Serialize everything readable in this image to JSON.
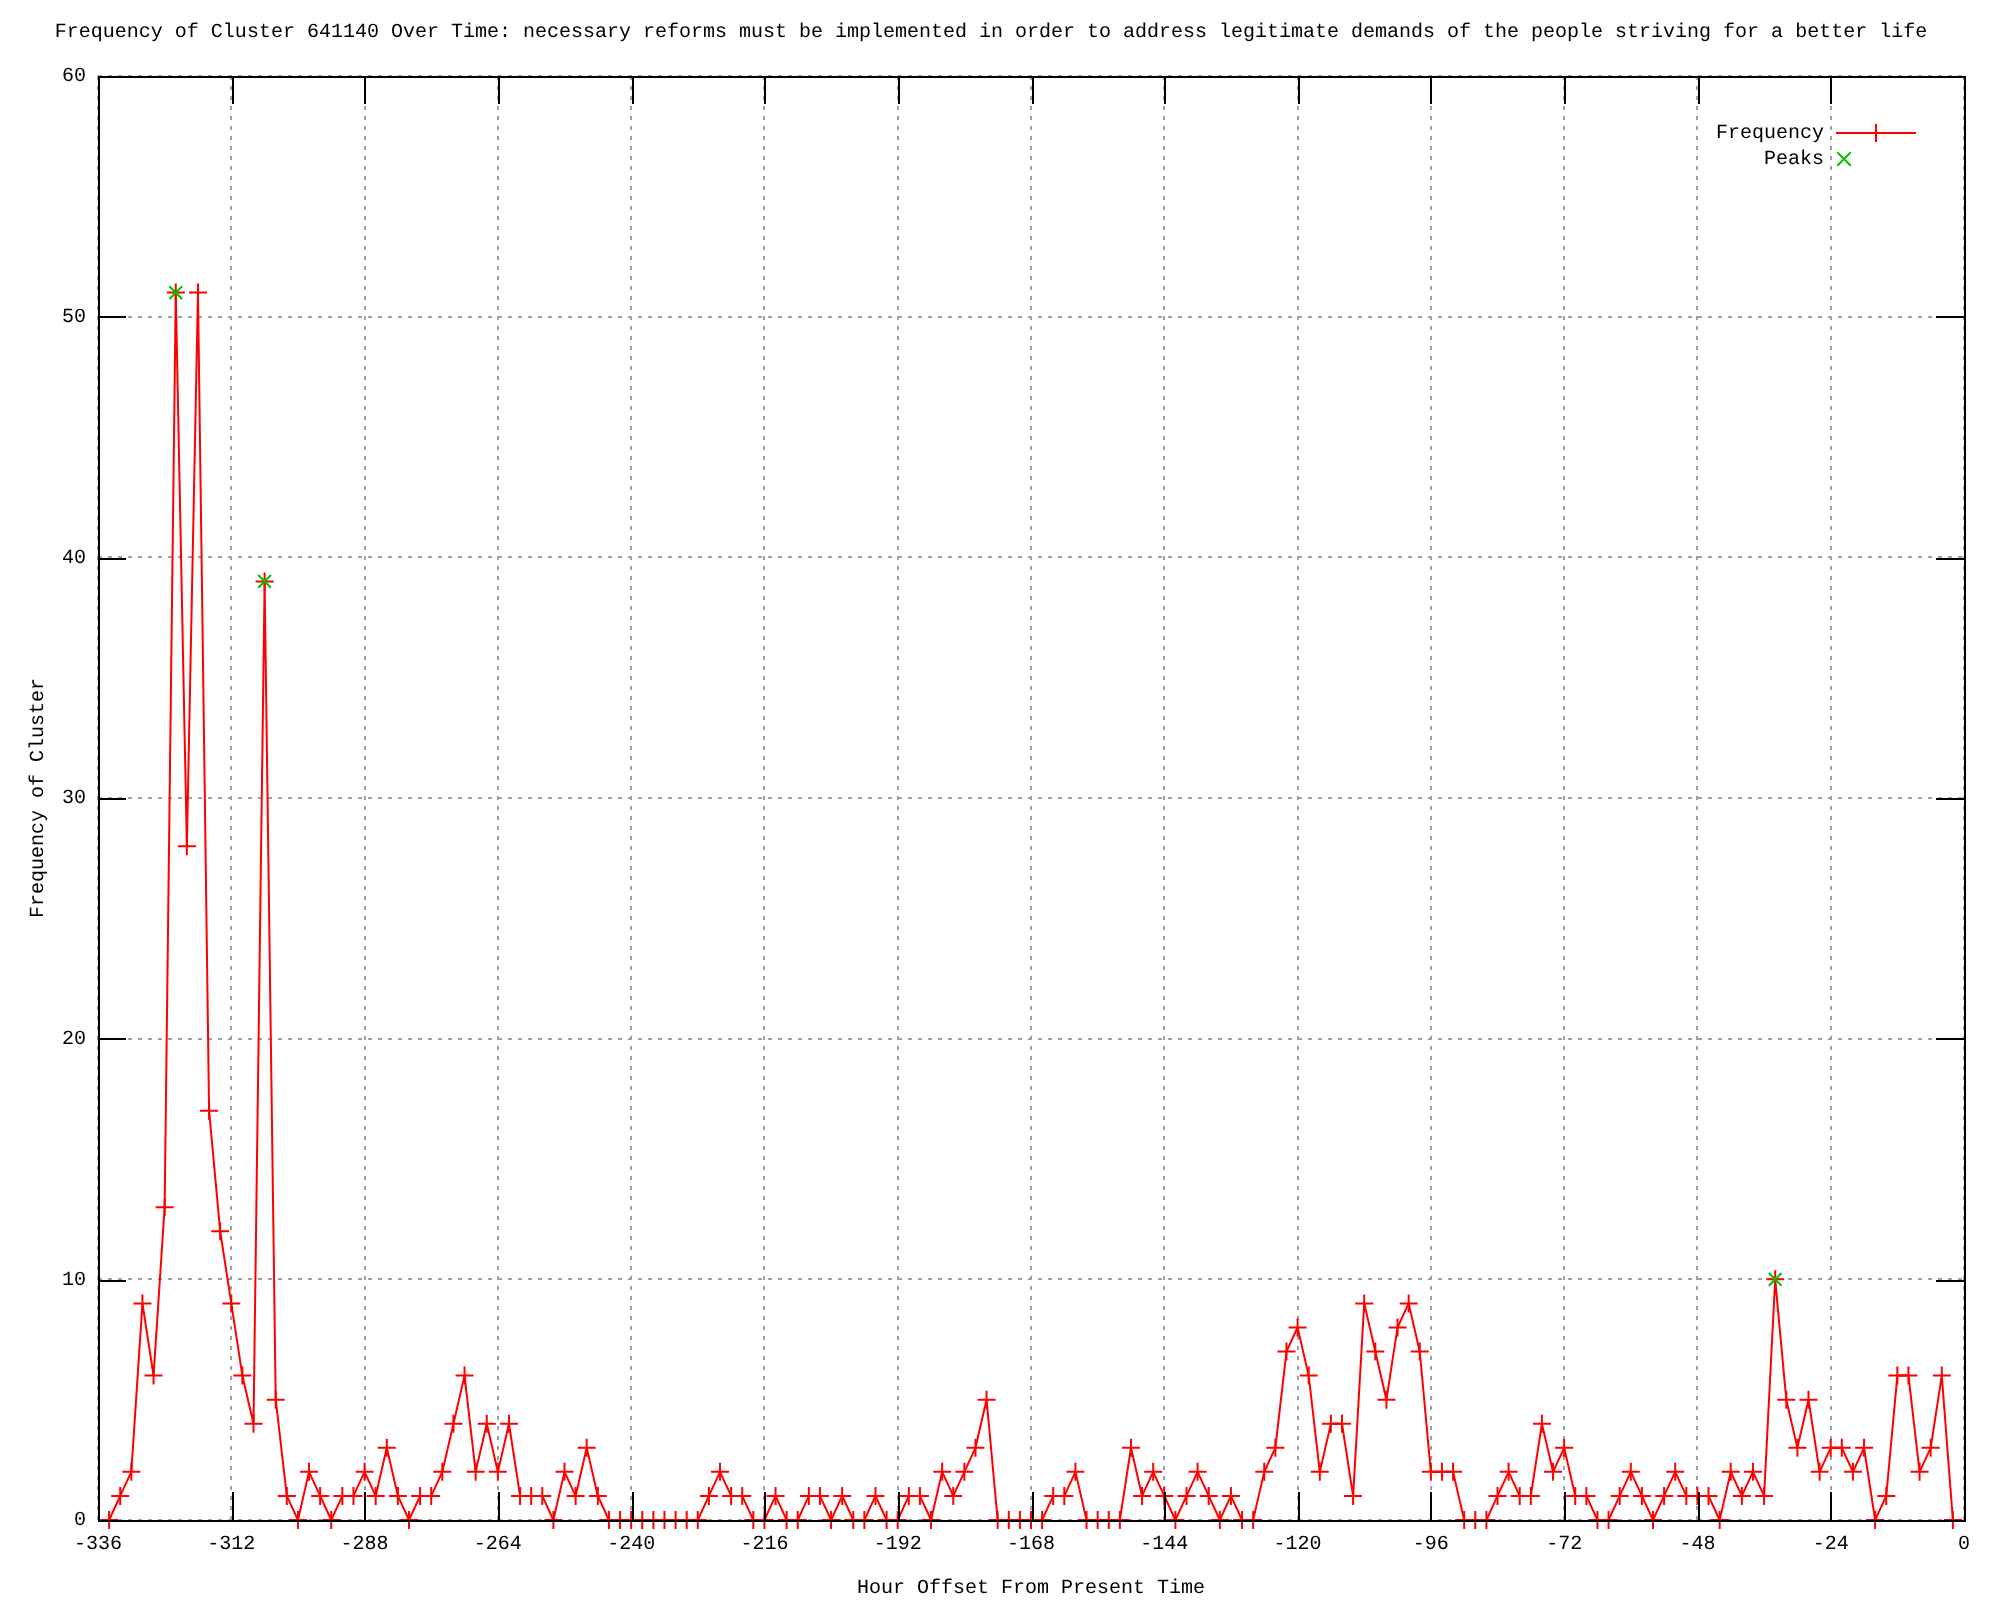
{
  "chart_data": {
    "type": "line",
    "title": "Frequency of Cluster 641140 Over Time: necessary reforms must be implemented in order to address legitimate demands of the people striving for a better life",
    "xlabel": "Hour Offset From Present Time",
    "ylabel": "Frequency of Cluster",
    "xlim": [
      -336,
      0
    ],
    "xticks": [
      -336,
      -312,
      -288,
      -264,
      -240,
      -216,
      -192,
      -168,
      -144,
      -120,
      -96,
      -72,
      -48,
      -24,
      0
    ],
    "ylim": [
      0,
      60
    ],
    "yticks": [
      0,
      10,
      20,
      30,
      40,
      50,
      60
    ],
    "grid": true,
    "legend": "top right",
    "series": [
      {
        "name": "Frequency",
        "color": "#ff0000",
        "marker": "cross",
        "x": [
          -334,
          -332,
          -330,
          -328,
          -326,
          -324,
          -322,
          -320,
          -318,
          -316,
          -314,
          -312,
          -310,
          -308,
          -306,
          -304,
          -302,
          -300,
          -298,
          -296,
          -294,
          -292,
          -290,
          -288,
          -286,
          -284,
          -282,
          -280,
          -278,
          -276,
          -274,
          -272,
          -270,
          -268,
          -266,
          -264,
          -262,
          -260,
          -258,
          -256,
          -254,
          -252,
          -250,
          -248,
          -246,
          -244,
          -242,
          -240,
          -238,
          -236,
          -234,
          -232,
          -230,
          -228,
          -226,
          -224,
          -222,
          -220,
          -218,
          -216,
          -214,
          -212,
          -210,
          -208,
          -206,
          -204,
          -202,
          -200,
          -198,
          -196,
          -194,
          -192,
          -190,
          -188,
          -186,
          -184,
          -182,
          -180,
          -178,
          -176,
          -174,
          -172,
          -170,
          -168,
          -166,
          -164,
          -162,
          -160,
          -158,
          -156,
          -154,
          -152,
          -150,
          -148,
          -146,
          -144,
          -142,
          -140,
          -138,
          -136,
          -134,
          -132,
          -130,
          -128,
          -126,
          -124,
          -122,
          -120,
          -118,
          -116,
          -114,
          -112,
          -110,
          -108,
          -106,
          -104,
          -102,
          -100,
          -98,
          -96,
          -94,
          -92,
          -90,
          -88,
          -86,
          -84,
          -82,
          -80,
          -78,
          -76,
          -74,
          -72,
          -70,
          -68,
          -66,
          -64,
          -62,
          -60,
          -58,
          -56,
          -54,
          -52,
          -50,
          -48,
          -46,
          -44,
          -42,
          -40,
          -38,
          -36,
          -34,
          -32,
          -30,
          -28,
          -26,
          -24,
          -22,
          -20,
          -18,
          -16,
          -14,
          -12,
          -10,
          -8,
          -6,
          -4,
          -2
        ],
        "values": [
          0,
          1,
          2,
          9,
          6,
          13,
          51,
          28,
          51,
          17,
          12,
          9,
          6,
          4,
          39,
          5,
          1,
          0,
          2,
          1,
          0,
          1,
          1,
          2,
          1,
          3,
          1,
          0,
          1,
          1,
          2,
          4,
          6,
          2,
          4,
          2,
          4,
          1,
          1,
          1,
          0,
          2,
          1,
          3,
          1,
          0,
          0,
          0,
          0,
          0,
          0,
          0,
          0,
          0,
          1,
          2,
          1,
          1,
          0,
          0,
          1,
          0,
          0,
          1,
          1,
          0,
          1,
          0,
          0,
          1,
          0,
          0,
          1,
          1,
          0,
          2,
          1,
          2,
          3,
          5,
          0,
          0,
          0,
          0,
          0,
          1,
          1,
          2,
          0,
          0,
          0,
          0,
          3,
          1,
          2,
          1,
          0,
          1,
          2,
          1,
          0,
          1,
          0,
          0,
          2,
          3,
          7,
          8,
          6,
          2,
          4,
          4,
          1,
          9,
          7,
          5,
          8,
          9,
          7,
          2,
          2,
          2,
          0,
          0,
          0,
          1,
          2,
          1,
          1,
          4,
          2,
          3,
          1,
          1,
          0,
          0,
          1,
          2,
          1,
          0,
          1,
          2,
          1,
          1,
          1,
          0,
          2,
          1,
          2,
          1,
          10,
          5,
          3,
          5,
          2,
          3,
          3,
          2,
          3,
          0,
          1,
          6,
          6,
          2,
          3,
          6,
          0
        ]
      },
      {
        "name": "Peaks",
        "type": "scatter",
        "color": "#00c000",
        "marker": "cross",
        "x": [
          -322,
          -306,
          -34
        ],
        "values": [
          51,
          39,
          10
        ]
      }
    ]
  }
}
